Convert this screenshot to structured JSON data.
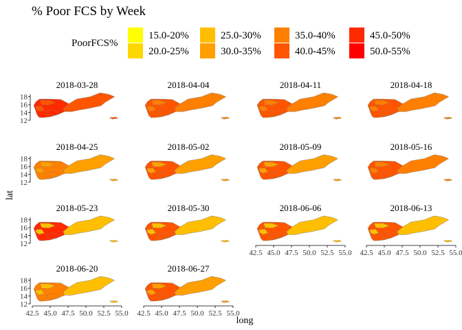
{
  "chart_data": {
    "type": "choropleth-facets",
    "title": "% Poor FCS by Week",
    "xlabel": "long",
    "ylabel": "lat",
    "legend": {
      "title": "PoorFCS%",
      "position": "top",
      "entries": [
        {
          "label": "15.0-20%",
          "color": "#FFFF00"
        },
        {
          "label": "20.0-25%",
          "color": "#FFD700"
        },
        {
          "label": "25.0-30%",
          "color": "#FFBF00"
        },
        {
          "label": "30.0-35%",
          "color": "#FF9F00"
        },
        {
          "label": "35.0-40%",
          "color": "#FF7F00"
        },
        {
          "label": "40.0-45%",
          "color": "#FF5500"
        },
        {
          "label": "45.0-50%",
          "color": "#FF2A00"
        },
        {
          "label": "50.0-55%",
          "color": "#FF0000"
        }
      ]
    },
    "x_ticks": [
      "42.5",
      "45.0",
      "47.5",
      "50.0",
      "52.5",
      "55.0"
    ],
    "y_ticks": [
      "18",
      "16",
      "14",
      "12"
    ],
    "xlim": [
      42.5,
      55.0
    ],
    "ylim": [
      12,
      19
    ],
    "facets": [
      {
        "label": "2018-03-28",
        "east": "40.0-45%",
        "west": "45.0-50%"
      },
      {
        "label": "2018-04-04",
        "east": "35.0-40%",
        "west": "40.0-45%"
      },
      {
        "label": "2018-04-11",
        "east": "35.0-40%",
        "west": "40.0-45%"
      },
      {
        "label": "2018-04-18",
        "east": "35.0-40%",
        "west": "40.0-45%"
      },
      {
        "label": "2018-04-25",
        "east": "30.0-35%",
        "west": "35.0-40%"
      },
      {
        "label": "2018-05-02",
        "east": "30.0-35%",
        "west": "40.0-45%"
      },
      {
        "label": "2018-05-09",
        "east": "30.0-35%",
        "west": "40.0-45%"
      },
      {
        "label": "2018-05-16",
        "east": "35.0-40%",
        "west": "40.0-45%"
      },
      {
        "label": "2018-05-23",
        "east": "25.0-30%",
        "west": "45.0-50%"
      },
      {
        "label": "2018-05-30",
        "east": "25.0-30%",
        "west": "40.0-45%"
      },
      {
        "label": "2018-06-06",
        "east": "25.0-30%",
        "west": "40.0-45%"
      },
      {
        "label": "2018-06-13",
        "east": "25.0-30%",
        "west": "40.0-45%"
      },
      {
        "label": "2018-06-20",
        "east": "25.0-30%",
        "west": "35.0-40%"
      },
      {
        "label": "2018-06-27",
        "east": "30.0-35%",
        "west": "40.0-45%"
      }
    ],
    "grid": false
  }
}
